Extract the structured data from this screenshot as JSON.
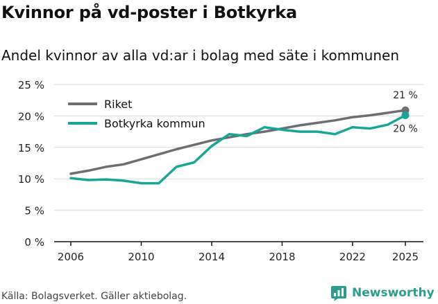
{
  "title": "Kvinnor på vd-poster i Botkyrka",
  "subtitle": "Andel kvinnor av alla vd:ar i bolag med säte i kommunen",
  "source": "Källa: Bolagsverket. Gäller aktiebolag.",
  "brand": "Newsworthy",
  "colors": {
    "riket": "#6e6d73",
    "botkyrka": "#17a597",
    "grid": "#d9d9d9",
    "brand": "#2a9d8f"
  },
  "chart_data": {
    "type": "line",
    "title": "Kvinnor på vd-poster i Botkyrka",
    "subtitle": "Andel kvinnor av alla vd:ar i bolag med säte i kommunen",
    "xlabel": "",
    "ylabel": "",
    "xlim": [
      2006,
      2025
    ],
    "ylim": [
      0,
      25
    ],
    "grid": true,
    "legend_position": "top-left",
    "x_ticks": [
      2006,
      2010,
      2014,
      2018,
      2022,
      2025
    ],
    "y_ticks": [
      0,
      5,
      10,
      15,
      20,
      25
    ],
    "y_tick_labels": [
      "0 %",
      "5 %",
      "10 %",
      "15 %",
      "20 %",
      "25 %"
    ],
    "x": [
      2006,
      2007,
      2008,
      2009,
      2010,
      2011,
      2012,
      2013,
      2014,
      2015,
      2016,
      2017,
      2018,
      2019,
      2020,
      2021,
      2022,
      2023,
      2024,
      2025
    ],
    "series": [
      {
        "name": "Riket",
        "values": [
          10.8,
          11.3,
          11.9,
          12.3,
          13.1,
          13.9,
          14.7,
          15.4,
          16.1,
          16.6,
          17.1,
          17.5,
          18.0,
          18.5,
          18.9,
          19.3,
          19.8,
          20.1,
          20.5,
          20.9
        ],
        "end_label": "21 %"
      },
      {
        "name": "Botkyrka kommun",
        "values": [
          10.1,
          9.8,
          9.9,
          9.7,
          9.3,
          9.3,
          11.9,
          12.6,
          15.2,
          17.1,
          16.8,
          18.2,
          17.8,
          17.5,
          17.5,
          17.1,
          18.2,
          18.0,
          18.6,
          20.1
        ],
        "end_label": "20 %"
      }
    ]
  }
}
